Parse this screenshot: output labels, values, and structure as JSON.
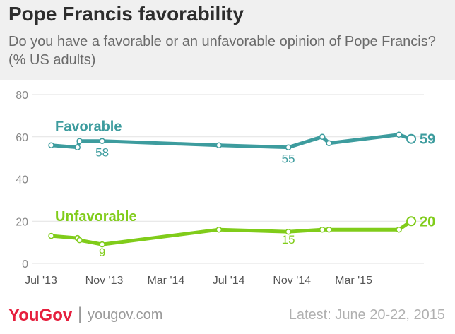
{
  "header": {
    "title": "Pope Francis favorability",
    "subtitle": "Do you have a favorable or an unfavorable opinion of Pope Francis? (% US adults)"
  },
  "footer": {
    "logo_you": "You",
    "logo_gov": "Gov",
    "separator": "|",
    "url": "yougov.com",
    "latest": "Latest: June 20-22, 2015"
  },
  "colors": {
    "favorable": "#3d9c9e",
    "unfavorable": "#80cc1a",
    "grid": "#e2e2e2",
    "axis_text": "#8a8a8a"
  },
  "chart_data": {
    "type": "line",
    "title": "Pope Francis favorability",
    "subtitle": "Do you have a favorable or an unfavorable opinion of Pope Francis? (% US adults)",
    "ylim": [
      0,
      80
    ],
    "yticks": [
      0,
      20,
      40,
      60,
      80
    ],
    "xlim": [
      "2013-07-01",
      "2015-06-25"
    ],
    "xticks": [
      {
        "date": "2013-07-01",
        "label": "Jul '13"
      },
      {
        "date": "2013-11-01",
        "label": "Nov '13"
      },
      {
        "date": "2014-03-01",
        "label": "Mar '14"
      },
      {
        "date": "2014-07-01",
        "label": "Jul '14"
      },
      {
        "date": "2014-11-01",
        "label": "Nov '14"
      },
      {
        "date": "2015-03-01",
        "label": "Mar '15"
      }
    ],
    "grid": "horizontal",
    "series": [
      {
        "name": "Favorable",
        "color": "#3d9c9e",
        "end_label": "59",
        "points": [
          {
            "x": "2013-07-21",
            "y": 56
          },
          {
            "x": "2013-09-10",
            "y": 55
          },
          {
            "x": "2013-09-14",
            "y": 58
          },
          {
            "x": "2013-10-28",
            "y": 58,
            "label": "58"
          },
          {
            "x": "2014-06-12",
            "y": 56
          },
          {
            "x": "2014-10-25",
            "y": 55,
            "label": "55"
          },
          {
            "x": "2014-12-30",
            "y": 60
          },
          {
            "x": "2015-01-12",
            "y": 57
          },
          {
            "x": "2015-05-28",
            "y": 61
          },
          {
            "x": "2015-06-21",
            "y": 59
          }
        ]
      },
      {
        "name": "Unfavorable",
        "color": "#80cc1a",
        "end_label": "20",
        "points": [
          {
            "x": "2013-07-21",
            "y": 13
          },
          {
            "x": "2013-09-10",
            "y": 12
          },
          {
            "x": "2013-09-14",
            "y": 11
          },
          {
            "x": "2013-10-28",
            "y": 9,
            "label": "9"
          },
          {
            "x": "2014-06-12",
            "y": 16
          },
          {
            "x": "2014-10-25",
            "y": 15,
            "label": "15"
          },
          {
            "x": "2014-12-30",
            "y": 16
          },
          {
            "x": "2015-01-12",
            "y": 16
          },
          {
            "x": "2015-05-28",
            "y": 16
          },
          {
            "x": "2015-06-21",
            "y": 20
          }
        ]
      }
    ]
  }
}
